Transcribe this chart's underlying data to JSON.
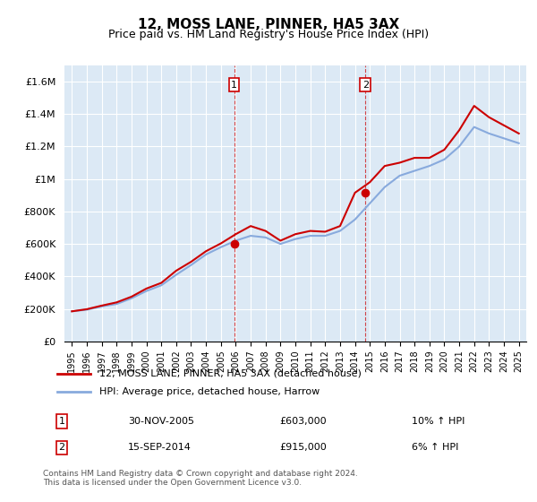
{
  "title": "12, MOSS LANE, PINNER, HA5 3AX",
  "subtitle": "Price paid vs. HM Land Registry's House Price Index (HPI)",
  "ylabel": "",
  "xlabel": "",
  "background_color": "#dce9f5",
  "plot_bg_color": "#dce9f5",
  "line1_color": "#cc0000",
  "line2_color": "#88aadd",
  "line1_label": "12, MOSS LANE, PINNER, HA5 3AX (detached house)",
  "line2_label": "HPI: Average price, detached house, Harrow",
  "years": [
    1995,
    1996,
    1997,
    1998,
    1999,
    2000,
    2001,
    2002,
    2003,
    2004,
    2005,
    2006,
    2007,
    2008,
    2009,
    2010,
    2011,
    2012,
    2013,
    2014,
    2015,
    2016,
    2017,
    2018,
    2019,
    2020,
    2021,
    2022,
    2023,
    2024,
    2025
  ],
  "hpi_values": [
    185000,
    195000,
    215000,
    230000,
    265000,
    310000,
    345000,
    410000,
    470000,
    535000,
    580000,
    620000,
    650000,
    640000,
    600000,
    630000,
    650000,
    650000,
    680000,
    750000,
    850000,
    950000,
    1020000,
    1050000,
    1080000,
    1120000,
    1200000,
    1320000,
    1280000,
    1250000,
    1220000
  ],
  "price_values": [
    185000,
    198000,
    220000,
    240000,
    275000,
    325000,
    360000,
    435000,
    490000,
    555000,
    603000,
    660000,
    710000,
    680000,
    620000,
    660000,
    680000,
    675000,
    710000,
    915000,
    980000,
    1080000,
    1100000,
    1130000,
    1130000,
    1180000,
    1300000,
    1450000,
    1380000,
    1330000,
    1280000
  ],
  "sale1_year": 2005.9,
  "sale1_price": 603000,
  "sale1_label": "1",
  "sale2_year": 2014.7,
  "sale2_price": 915000,
  "sale2_label": "2",
  "ylim": [
    0,
    1700000
  ],
  "yticks": [
    0,
    200000,
    400000,
    600000,
    800000,
    1000000,
    1200000,
    1400000,
    1600000
  ],
  "ytick_labels": [
    "£0",
    "£200K",
    "£400K",
    "£600K",
    "£800K",
    "£1M",
    "£1.2M",
    "£1.4M",
    "£1.6M"
  ],
  "footer": "Contains HM Land Registry data © Crown copyright and database right 2024.\nThis data is licensed under the Open Government Licence v3.0.",
  "table_data": [
    [
      "1",
      "30-NOV-2005",
      "£603,000",
      "10% ↑ HPI"
    ],
    [
      "2",
      "15-SEP-2014",
      "£915,000",
      "6% ↑ HPI"
    ]
  ]
}
